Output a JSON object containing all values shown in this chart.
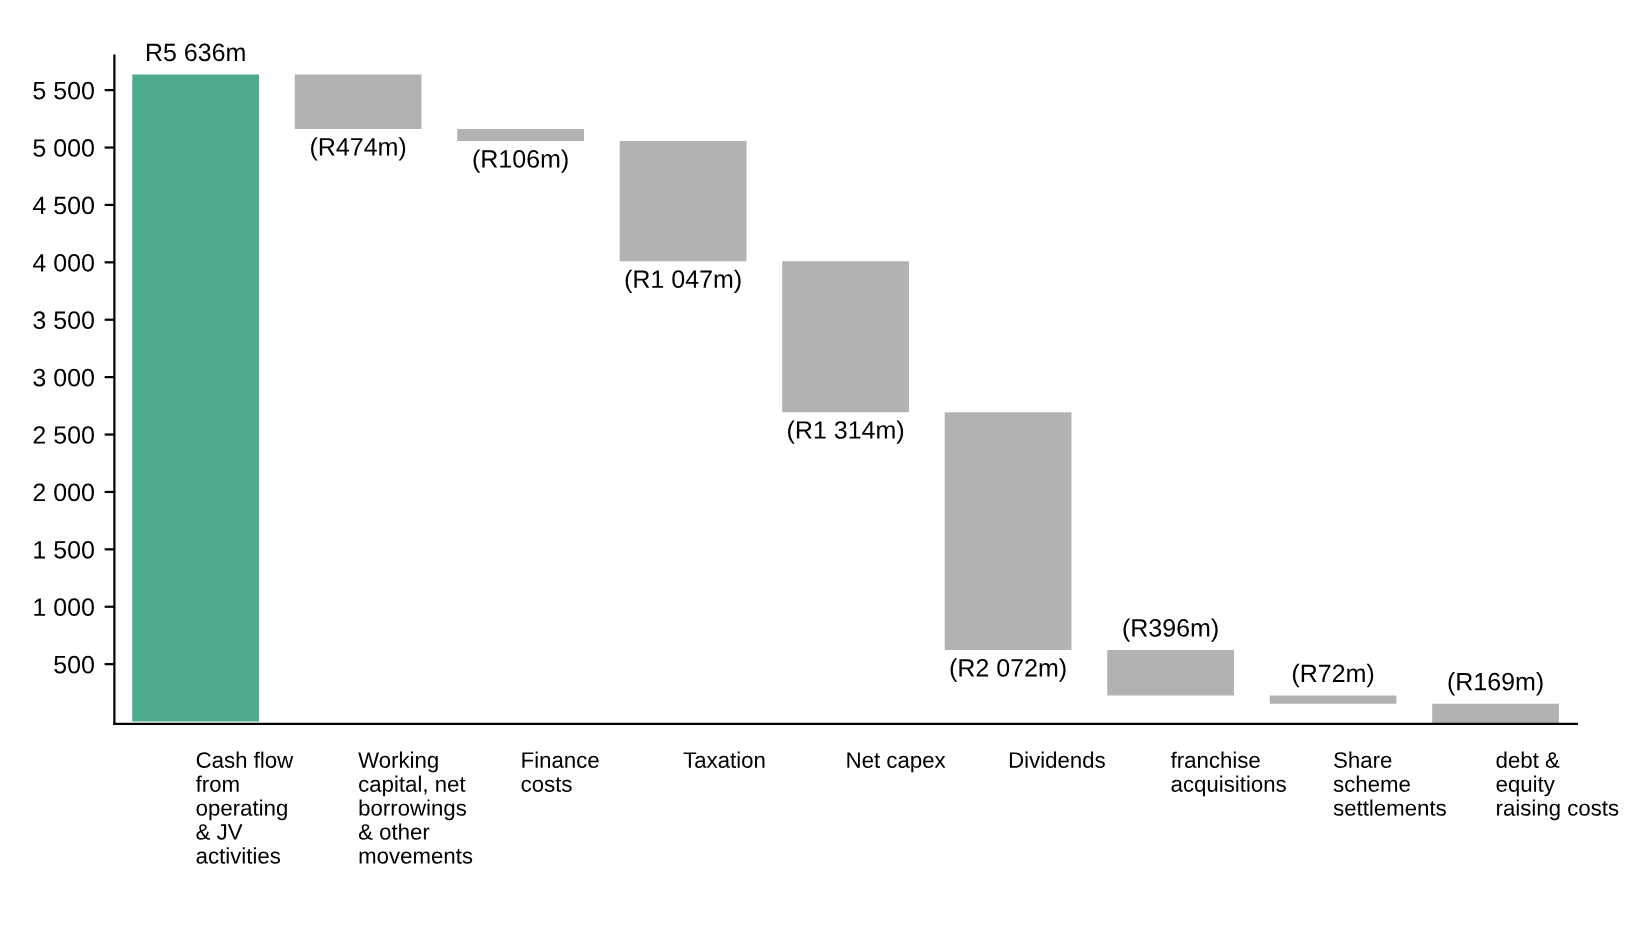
{
  "chart_data": {
    "type": "bar",
    "categories": [
      "Cash flow\nfrom\noperating\n& JV\nactivities",
      "Working\ncapital, net\nborrowings\n& other\nmovements",
      "Finance\ncosts",
      "Taxation",
      "Net capex",
      "Dividends",
      "franchise\nacquisitions",
      "Share\nscheme\nsettlements",
      "debt &\nequity\nraising costs"
    ],
    "values": [
      5636,
      -474,
      -106,
      -1047,
      -1314,
      -2072,
      -396,
      -72,
      -169
    ],
    "base": [
      0,
      5636,
      5162,
      5056,
      4009,
      2695,
      623,
      227,
      155
    ],
    "colors": [
      "#4fa98f",
      "#b1b3b2",
      "#b1b3b2",
      "#b1b3b2",
      "#b1b3b2",
      "#b1b3b2",
      "#b1b3b2",
      "#b1b3b2",
      "#b1b3b2"
    ],
    "value_labels": [
      "R5 636m",
      "(R474m)",
      "(R106m)",
      "(R1 047m)",
      "(R1 314m)",
      "(R2 072m)",
      "(R396m)",
      "(R72m)",
      "(R169m)"
    ],
    "ylim": [
      -20,
      5800
    ],
    "yticks": [
      500,
      {
        "value": 1000,
        "label": "1 000"
      },
      {
        "value": 1500,
        "label": "1 500"
      },
      {
        "value": 2000,
        "label": "2 000"
      },
      {
        "value": 2500,
        "label": "2 500"
      },
      {
        "value": 3000,
        "label": "3 000"
      },
      {
        "value": 3500,
        "label": "3 500"
      },
      {
        "value": 4000,
        "label": "4 000"
      },
      {
        "value": 4500,
        "label": "4 500"
      },
      {
        "value": 5000,
        "label": "5 000"
      },
      {
        "value": 5500,
        "label": "5 500"
      }
    ],
    "grid": false
  }
}
